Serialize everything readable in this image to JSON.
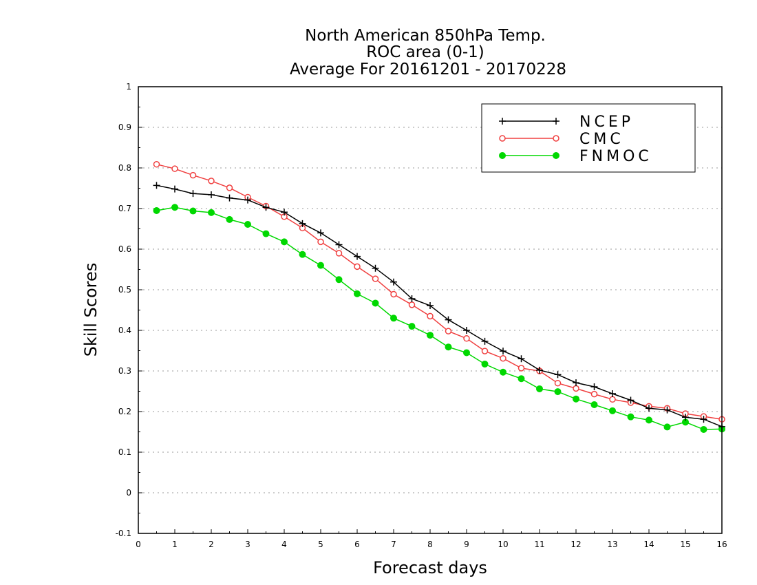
{
  "chart_data": {
    "type": "line",
    "title": [
      "North American 850hPa Temp.",
      "ROC area (0-1)",
      "Average For 20161201 - 20170228"
    ],
    "xlabel": "Forecast days",
    "ylabel": "Skill Scores",
    "xlim": [
      0,
      16
    ],
    "ylim": [
      -0.1,
      1
    ],
    "xticks": [
      0,
      1,
      2,
      3,
      4,
      5,
      6,
      7,
      8,
      9,
      10,
      11,
      12,
      13,
      14,
      15,
      16
    ],
    "xtick_labels": [
      "0",
      "1",
      "2",
      "3",
      "4",
      "5",
      "6",
      "7",
      "8",
      "9",
      "10",
      "11",
      "12",
      "13",
      "14",
      "15",
      "16"
    ],
    "yticks": [
      -0.1,
      0,
      0.1,
      0.2,
      0.3,
      0.4,
      0.5,
      0.6,
      0.7,
      0.8,
      0.9,
      1
    ],
    "ytick_labels": [
      "-0.1",
      "0",
      "0.1",
      "0.2",
      "0.3",
      "0.4",
      "0.5",
      "0.6",
      "0.7",
      "0.8",
      "0.9",
      "1"
    ],
    "grid": true,
    "legend_position": "top-right",
    "x": [
      0.5,
      1,
      1.5,
      2,
      2.5,
      3,
      3.5,
      4,
      4.5,
      5,
      5.5,
      6,
      6.5,
      7,
      7.5,
      8,
      8.5,
      9,
      9.5,
      10,
      10.5,
      11,
      11.5,
      12,
      12.5,
      13,
      13.5,
      14,
      14.5,
      15,
      15.5,
      16
    ],
    "series": [
      {
        "name": "NCEP",
        "color": "#000000",
        "marker": "plus",
        "values": [
          0.757,
          0.748,
          0.737,
          0.734,
          0.726,
          0.721,
          0.703,
          0.691,
          0.663,
          0.64,
          0.611,
          0.582,
          0.553,
          0.519,
          0.478,
          0.461,
          0.426,
          0.4,
          0.373,
          0.349,
          0.33,
          0.302,
          0.291,
          0.271,
          0.261,
          0.244,
          0.228,
          0.208,
          0.204,
          0.186,
          0.181,
          0.163
        ]
      },
      {
        "name": "CMC",
        "color": "#f04040",
        "marker": "open-circle",
        "values": [
          0.809,
          0.798,
          0.782,
          0.768,
          0.751,
          0.728,
          0.706,
          0.68,
          0.652,
          0.618,
          0.59,
          0.557,
          0.527,
          0.489,
          0.463,
          0.435,
          0.398,
          0.38,
          0.349,
          0.331,
          0.307,
          0.3,
          0.27,
          0.257,
          0.243,
          0.23,
          0.222,
          0.213,
          0.208,
          0.195,
          0.188,
          0.181
        ]
      },
      {
        "name": "FNMOC",
        "color": "#00d800",
        "marker": "filled-circle",
        "values": [
          0.695,
          0.703,
          0.694,
          0.69,
          0.673,
          0.661,
          0.638,
          0.618,
          0.587,
          0.56,
          0.525,
          0.49,
          0.467,
          0.43,
          0.41,
          0.388,
          0.359,
          0.345,
          0.317,
          0.297,
          0.281,
          0.256,
          0.249,
          0.231,
          0.217,
          0.202,
          0.187,
          0.179,
          0.162,
          0.174,
          0.156,
          0.157
        ]
      }
    ]
  }
}
